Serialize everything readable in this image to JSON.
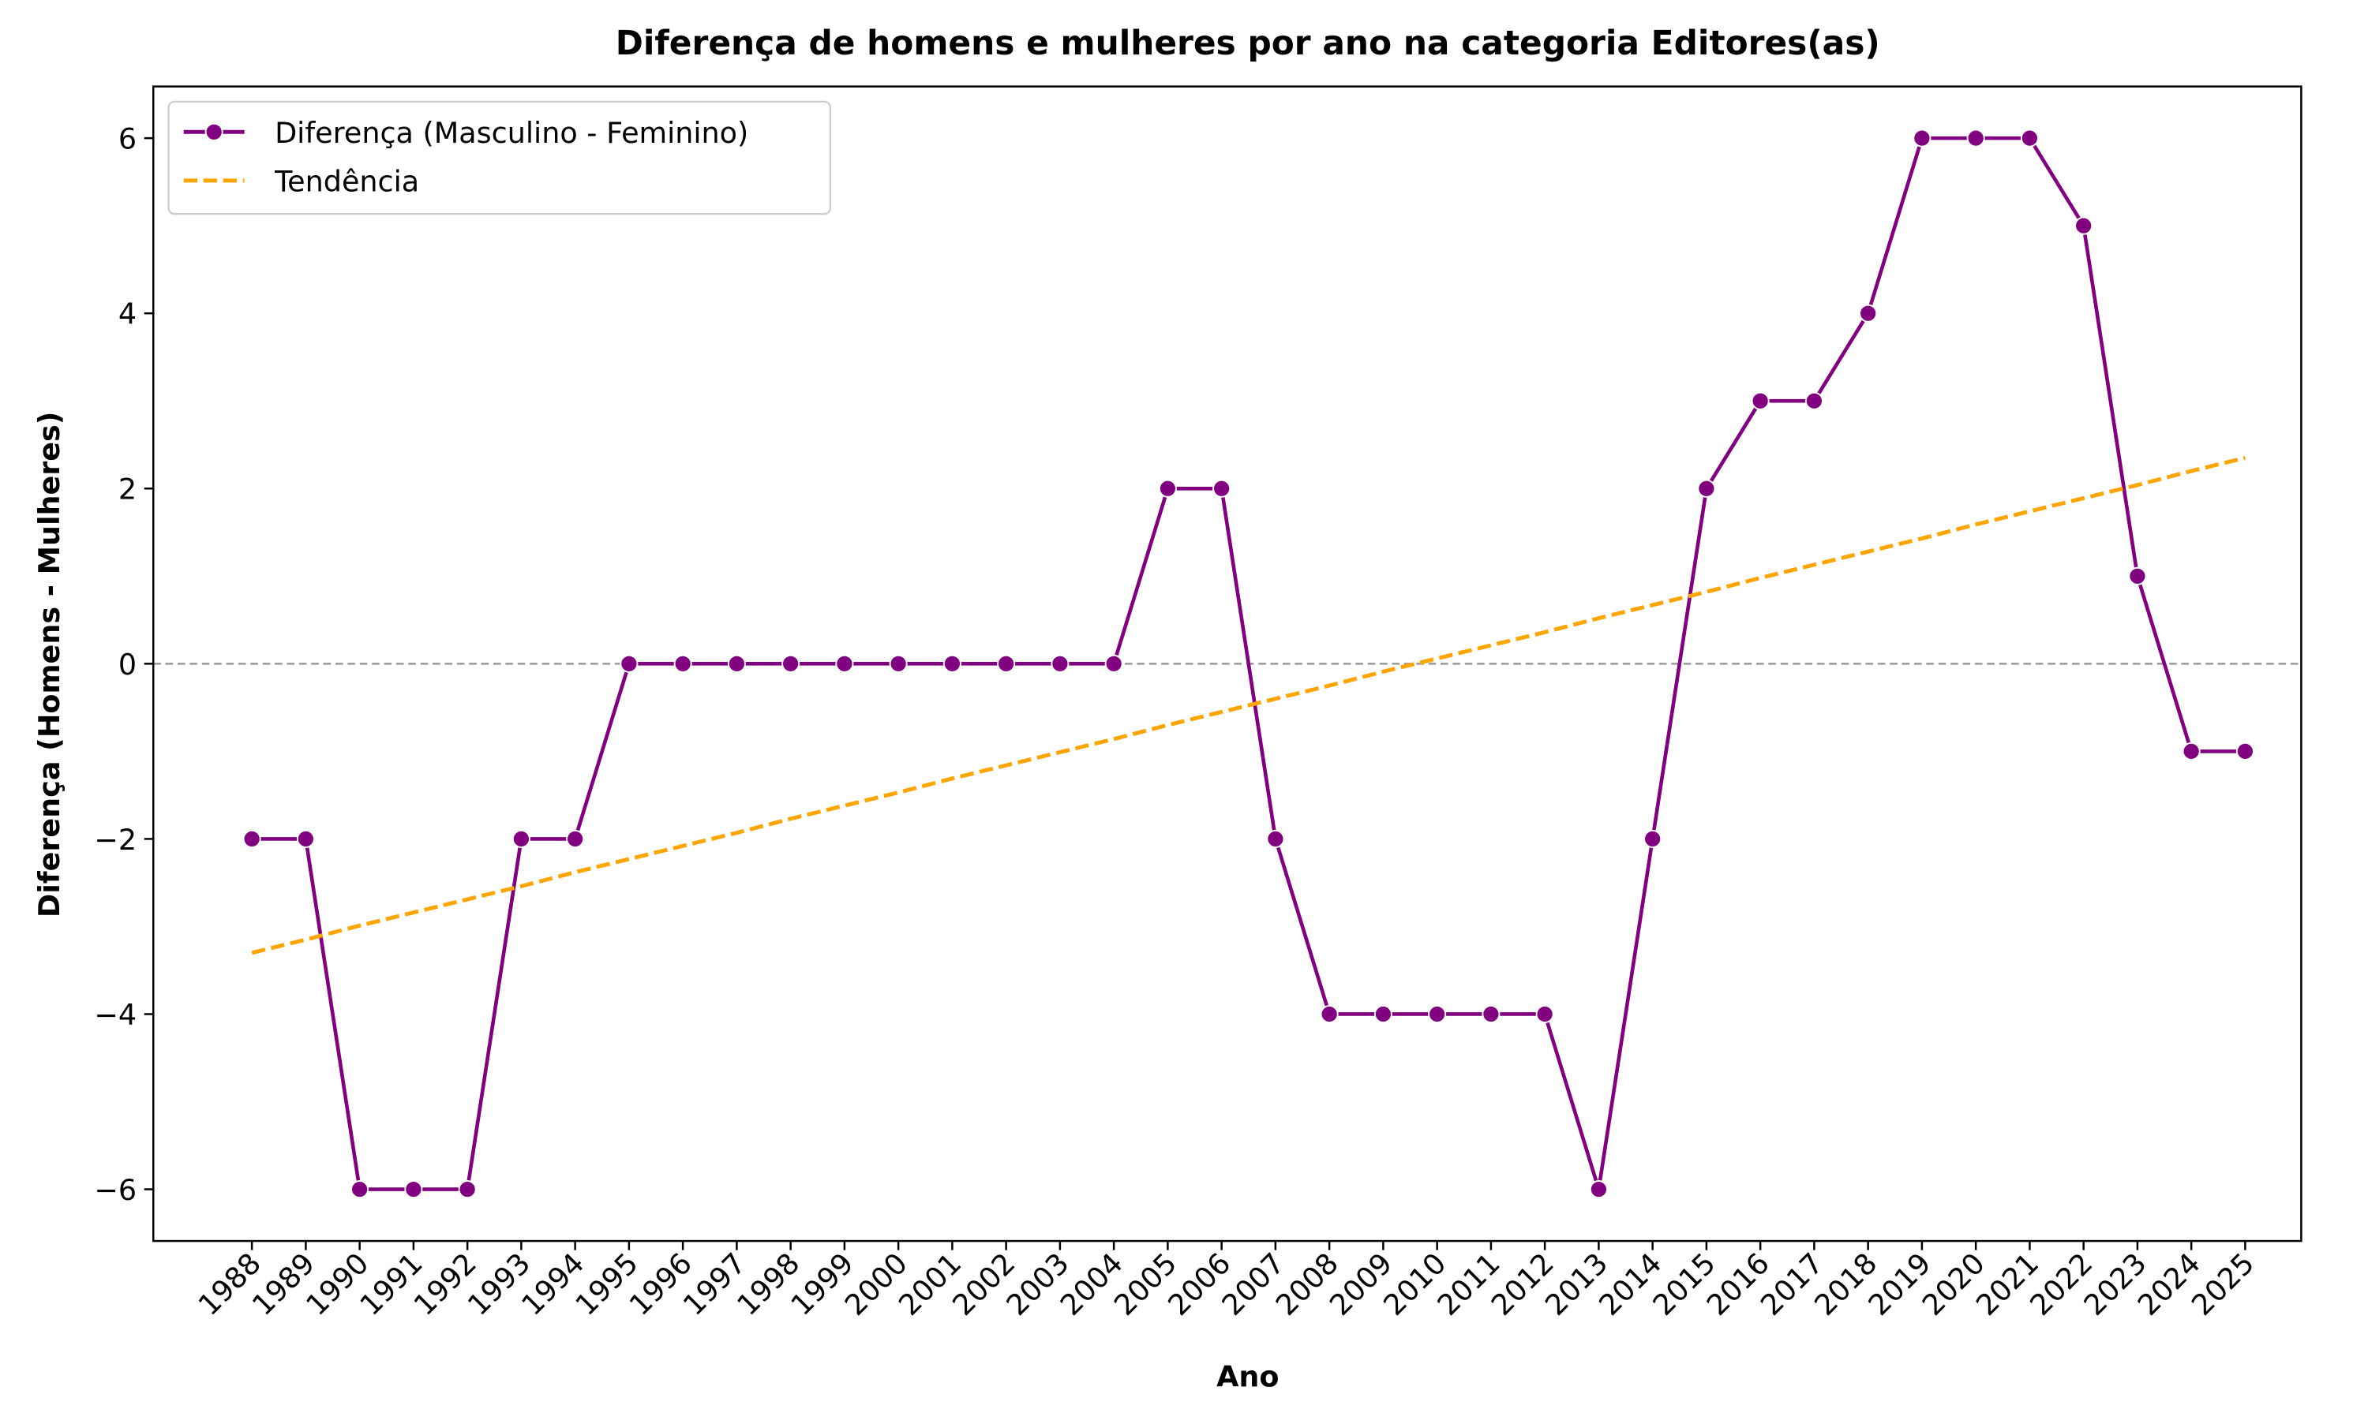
{
  "chart_data": {
    "type": "line",
    "title": "Diferença de homens e mulheres por ano na categoria Editores(as)",
    "x_label": "Ano",
    "y_label": "Diferença (Homens - Mulheres)",
    "categories": [
      "1988",
      "1989",
      "1990",
      "1991",
      "1992",
      "1993",
      "1994",
      "1995",
      "1996",
      "1997",
      "1998",
      "1999",
      "2000",
      "2001",
      "2002",
      "2003",
      "2004",
      "2005",
      "2006",
      "2007",
      "2008",
      "2009",
      "2010",
      "2011",
      "2012",
      "2013",
      "2014",
      "2015",
      "2016",
      "2017",
      "2018",
      "2019",
      "2020",
      "2021",
      "2022",
      "2023",
      "2024",
      "2025"
    ],
    "series": [
      {
        "name": "Diferença (Masculino - Feminino)",
        "color": "#800080",
        "style": "solid",
        "marker": true,
        "values": [
          -2,
          -2,
          -6,
          -6,
          -6,
          -2,
          -2,
          0,
          0,
          0,
          0,
          0,
          0,
          0,
          0,
          0,
          0,
          2,
          2,
          -2,
          -4,
          -4,
          -4,
          -4,
          -4,
          -6,
          -2,
          2,
          3,
          3,
          4,
          6,
          6,
          6,
          5,
          1,
          -1,
          -1
        ]
      },
      {
        "name": "Tendência",
        "color": "#ffa500",
        "style": "dashed",
        "marker": false,
        "values": [
          -3.3,
          -3.15,
          -2.99,
          -2.84,
          -2.69,
          -2.54,
          -2.38,
          -2.23,
          -2.08,
          -1.93,
          -1.77,
          -1.62,
          -1.47,
          -1.31,
          -1.16,
          -1.01,
          -0.86,
          -0.7,
          -0.55,
          -0.4,
          -0.25,
          -0.09,
          0.06,
          0.21,
          0.36,
          0.52,
          0.67,
          0.82,
          0.98,
          1.13,
          1.28,
          1.43,
          1.59,
          1.74,
          1.89,
          2.04,
          2.2,
          2.35
        ]
      }
    ],
    "ylim": [
      -6.59,
      6.59
    ],
    "yticks": [
      {
        "value": -6,
        "label": "−6"
      },
      {
        "value": -4,
        "label": "−4"
      },
      {
        "value": -2,
        "label": "−2"
      },
      0,
      2,
      4,
      6
    ],
    "reference_line": 0,
    "legend": "upper left",
    "grid": false
  }
}
